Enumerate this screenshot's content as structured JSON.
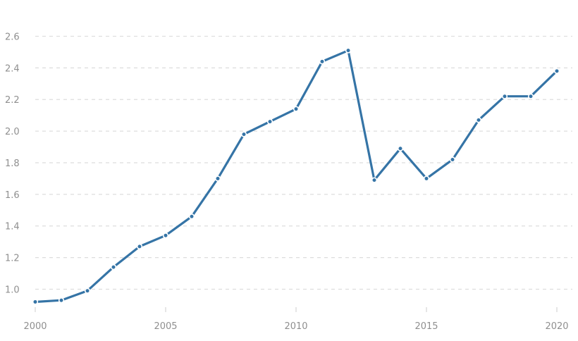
{
  "chart_data": {
    "type": "line",
    "title": "",
    "xlabel": "",
    "ylabel": "",
    "xlim": [
      2000,
      2020
    ],
    "ylim": [
      0.9,
      2.6
    ],
    "x_ticks": [
      "2000",
      "2005",
      "2010",
      "2015",
      "2020"
    ],
    "y_ticks": [
      "1.0",
      "1.2",
      "1.4",
      "1.6",
      "1.8",
      "2.0",
      "2.2",
      "2.4",
      "2.6"
    ],
    "grid": "horizontal dashed",
    "legend": "none",
    "colors": {
      "line": "#3574a6",
      "grid": "#dddddd",
      "tick_text": "#8f8f8f"
    },
    "series": [
      {
        "x": [
          2000,
          2001,
          2002,
          2003,
          2004,
          2005,
          2006,
          2007,
          2008,
          2009,
          2010,
          2011,
          2012,
          2013,
          2014,
          2015,
          2016,
          2017,
          2018,
          2019,
          2020
        ],
        "values": [
          0.92,
          0.93,
          0.99,
          1.14,
          1.27,
          1.34,
          1.46,
          1.7,
          1.98,
          2.06,
          2.14,
          2.44,
          2.51,
          1.69,
          1.89,
          1.7,
          1.82,
          2.07,
          2.22,
          2.22,
          2.38
        ]
      }
    ]
  }
}
